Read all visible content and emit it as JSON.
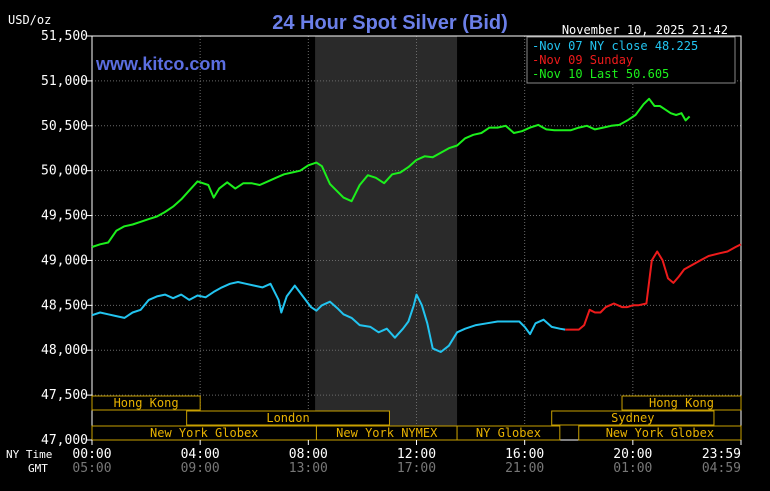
{
  "chart_data": {
    "type": "line",
    "title": "24 Hour Spot Silver (Bid)",
    "ylabel": "USD/oz",
    "watermark": "www.kitco.com",
    "timestamp": "November 10, 2025 21:42",
    "ylim": [
      47000,
      51500
    ],
    "y_ticks": [
      "51,500",
      "51,000",
      "50,500",
      "50,000",
      "49,500",
      "49,000",
      "48,500",
      "48,000",
      "47,500",
      "47,000"
    ],
    "x_range_hours": [
      0,
      24
    ],
    "x_ticks_ny": [
      "00:00",
      "04:00",
      "08:00",
      "12:00",
      "16:00",
      "20:00",
      "23:59"
    ],
    "x_ticks_gmt": [
      "05:00",
      "09:00",
      "13:00",
      "17:00",
      "21:00",
      "01:00",
      "04:59"
    ],
    "axis_label_ny": "NY Time",
    "axis_label_gmt": "GMT",
    "grid": true,
    "shaded_hours": [
      8.25,
      13.5
    ],
    "legend_placement": "top-right",
    "series": [
      {
        "name": "Nov 07 NY close 48.225",
        "color": "#22c4f0",
        "points": [
          [
            0,
            48390
          ],
          [
            0.3,
            48420
          ],
          [
            0.6,
            48400
          ],
          [
            0.9,
            48380
          ],
          [
            1.2,
            48360
          ],
          [
            1.5,
            48420
          ],
          [
            1.8,
            48450
          ],
          [
            2.1,
            48560
          ],
          [
            2.4,
            48600
          ],
          [
            2.7,
            48620
          ],
          [
            3.0,
            48580
          ],
          [
            3.3,
            48620
          ],
          [
            3.6,
            48560
          ],
          [
            3.9,
            48610
          ],
          [
            4.2,
            48590
          ],
          [
            4.5,
            48650
          ],
          [
            4.8,
            48700
          ],
          [
            5.1,
            48740
          ],
          [
            5.4,
            48760
          ],
          [
            5.7,
            48740
          ],
          [
            6.0,
            48720
          ],
          [
            6.3,
            48700
          ],
          [
            6.6,
            48740
          ],
          [
            6.9,
            48560
          ],
          [
            7.0,
            48420
          ],
          [
            7.2,
            48600
          ],
          [
            7.5,
            48720
          ],
          [
            7.8,
            48600
          ],
          [
            8.1,
            48480
          ],
          [
            8.3,
            48440
          ],
          [
            8.5,
            48500
          ],
          [
            8.8,
            48540
          ],
          [
            9.1,
            48460
          ],
          [
            9.3,
            48400
          ],
          [
            9.6,
            48360
          ],
          [
            9.9,
            48280
          ],
          [
            10.3,
            48260
          ],
          [
            10.6,
            48200
          ],
          [
            10.9,
            48240
          ],
          [
            11.2,
            48140
          ],
          [
            11.5,
            48240
          ],
          [
            11.7,
            48320
          ],
          [
            11.9,
            48500
          ],
          [
            12.0,
            48620
          ],
          [
            12.2,
            48500
          ],
          [
            12.4,
            48300
          ],
          [
            12.6,
            48020
          ],
          [
            12.9,
            47980
          ],
          [
            13.2,
            48050
          ],
          [
            13.5,
            48200
          ],
          [
            13.8,
            48240
          ],
          [
            14.2,
            48280
          ],
          [
            14.6,
            48300
          ],
          [
            15.0,
            48320
          ],
          [
            15.4,
            48320
          ],
          [
            15.8,
            48320
          ],
          [
            16.0,
            48260
          ],
          [
            16.2,
            48180
          ],
          [
            16.4,
            48300
          ],
          [
            16.7,
            48340
          ],
          [
            17.0,
            48260
          ],
          [
            17.3,
            48240
          ],
          [
            17.5,
            48230
          ]
        ]
      },
      {
        "name": "Nov 09 Sunday",
        "color": "#ee1b1b",
        "points": [
          [
            17.5,
            48230
          ],
          [
            17.8,
            48230
          ],
          [
            18.0,
            48230
          ],
          [
            18.2,
            48280
          ],
          [
            18.4,
            48450
          ],
          [
            18.6,
            48420
          ],
          [
            18.8,
            48420
          ],
          [
            19.0,
            48480
          ],
          [
            19.3,
            48520
          ],
          [
            19.6,
            48480
          ],
          [
            19.8,
            48480
          ],
          [
            20.0,
            48500
          ],
          [
            20.2,
            48500
          ],
          [
            20.5,
            48520
          ],
          [
            20.7,
            49000
          ],
          [
            20.9,
            49100
          ],
          [
            21.1,
            49000
          ],
          [
            21.3,
            48800
          ],
          [
            21.5,
            48750
          ],
          [
            21.7,
            48820
          ],
          [
            21.9,
            48900
          ],
          [
            22.2,
            48950
          ],
          [
            22.5,
            49000
          ],
          [
            22.8,
            49050
          ],
          [
            23.2,
            49080
          ],
          [
            23.5,
            49100
          ],
          [
            23.8,
            49150
          ],
          [
            24.0,
            49180
          ]
        ]
      },
      {
        "name": "Nov 10 Last 50.605",
        "color": "#1cf01c",
        "points": [
          [
            0,
            49150
          ],
          [
            0.3,
            49180
          ],
          [
            0.6,
            49200
          ],
          [
            0.9,
            49330
          ],
          [
            1.2,
            49380
          ],
          [
            1.5,
            49400
          ],
          [
            1.8,
            49430
          ],
          [
            2.1,
            49460
          ],
          [
            2.4,
            49490
          ],
          [
            2.7,
            49540
          ],
          [
            3.0,
            49600
          ],
          [
            3.3,
            49680
          ],
          [
            3.6,
            49780
          ],
          [
            3.9,
            49880
          ],
          [
            4.1,
            49860
          ],
          [
            4.3,
            49840
          ],
          [
            4.5,
            49700
          ],
          [
            4.7,
            49800
          ],
          [
            5.0,
            49870
          ],
          [
            5.3,
            49800
          ],
          [
            5.6,
            49860
          ],
          [
            5.9,
            49860
          ],
          [
            6.2,
            49840
          ],
          [
            6.5,
            49880
          ],
          [
            6.8,
            49920
          ],
          [
            7.1,
            49960
          ],
          [
            7.4,
            49980
          ],
          [
            7.7,
            50000
          ],
          [
            8.0,
            50060
          ],
          [
            8.3,
            50090
          ],
          [
            8.5,
            50050
          ],
          [
            8.8,
            49850
          ],
          [
            9.1,
            49760
          ],
          [
            9.3,
            49700
          ],
          [
            9.6,
            49660
          ],
          [
            9.9,
            49840
          ],
          [
            10.2,
            49950
          ],
          [
            10.5,
            49920
          ],
          [
            10.8,
            49860
          ],
          [
            11.1,
            49960
          ],
          [
            11.4,
            49980
          ],
          [
            11.7,
            50040
          ],
          [
            12.0,
            50120
          ],
          [
            12.3,
            50160
          ],
          [
            12.6,
            50150
          ],
          [
            12.9,
            50200
          ],
          [
            13.2,
            50250
          ],
          [
            13.5,
            50280
          ],
          [
            13.8,
            50360
          ],
          [
            14.1,
            50400
          ],
          [
            14.4,
            50420
          ],
          [
            14.7,
            50480
          ],
          [
            15.0,
            50480
          ],
          [
            15.3,
            50500
          ],
          [
            15.6,
            50420
          ],
          [
            15.9,
            50440
          ],
          [
            16.2,
            50480
          ],
          [
            16.5,
            50510
          ],
          [
            16.8,
            50460
          ],
          [
            17.1,
            50450
          ],
          [
            17.4,
            50450
          ],
          [
            17.7,
            50450
          ],
          [
            18.0,
            50480
          ],
          [
            18.3,
            50500
          ],
          [
            18.6,
            50460
          ],
          [
            18.9,
            50480
          ],
          [
            19.2,
            50500
          ],
          [
            19.5,
            50510
          ],
          [
            19.8,
            50560
          ],
          [
            20.1,
            50620
          ],
          [
            20.4,
            50740
          ],
          [
            20.6,
            50800
          ],
          [
            20.8,
            50720
          ],
          [
            21.0,
            50720
          ],
          [
            21.2,
            50680
          ],
          [
            21.4,
            50640
          ],
          [
            21.6,
            50620
          ],
          [
            21.8,
            50640
          ],
          [
            21.95,
            50560
          ],
          [
            22.1,
            50605
          ]
        ]
      }
    ],
    "sessions": [
      {
        "label": "Hong Kong",
        "start": 0,
        "end": 4.0,
        "row": 0
      },
      {
        "label": "Hong Kong",
        "start": 19.6,
        "end": 24,
        "row": 0
      },
      {
        "label": "London",
        "start": 3.5,
        "end": 11.0,
        "row": 1
      },
      {
        "label": "Sydney",
        "start": 17.0,
        "end": 23.0,
        "row": 1
      },
      {
        "label": "New York Globex",
        "start": 0,
        "end": 8.3,
        "row": 2
      },
      {
        "label": "New York NYMEX",
        "start": 8.3,
        "end": 13.5,
        "row": 2
      },
      {
        "label": "NY Globex",
        "start": 13.5,
        "end": 17.3,
        "row": 2
      },
      {
        "label": "New York Globex",
        "start": 18.0,
        "end": 24,
        "row": 2
      }
    ]
  }
}
